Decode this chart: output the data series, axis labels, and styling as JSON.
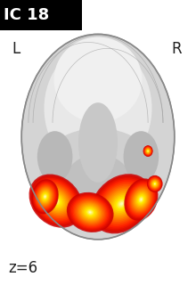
{
  "title": "IC 18",
  "title_bg": "#000000",
  "title_color": "#ffffff",
  "title_fontsize": 13,
  "label_L": "L",
  "label_R": "R",
  "label_z": "z=6",
  "label_fontsize": 12,
  "bg_color": "#ffffff",
  "brain_color": "#c8c8c8",
  "figsize": [
    2.2,
    3.2
  ],
  "dpi": 100
}
